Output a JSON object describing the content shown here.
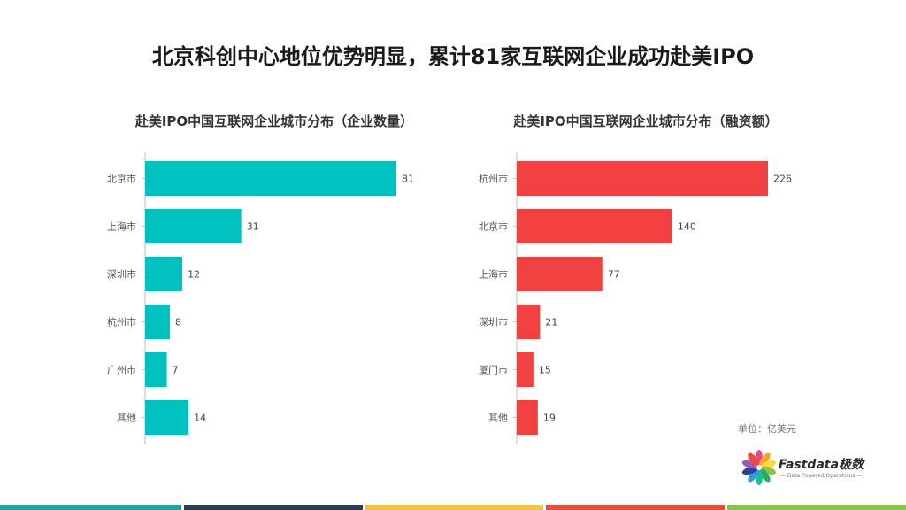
{
  "header": {
    "title": "北京科创中心地位优势明显，累计81家互联网企业成功赴美IPO"
  },
  "chart_data": [
    {
      "type": "bar",
      "orientation": "horizontal",
      "title": "赴美IPO中国互联网企业城市分布（企业数量）",
      "categories": [
        "北京市",
        "上海市",
        "深圳市",
        "杭州市",
        "广州市",
        "其他"
      ],
      "values": [
        81,
        31,
        12,
        8,
        7,
        14
      ],
      "color": "#00C0C0",
      "xlim": [
        0,
        81
      ]
    },
    {
      "type": "bar",
      "orientation": "horizontal",
      "title": "赴美IPO中国互联网企业城市分布（融资额）",
      "categories": [
        "杭州市",
        "北京市",
        "上海市",
        "深圳市",
        "厦门市",
        "其他"
      ],
      "values": [
        226,
        140,
        77,
        21,
        15,
        19
      ],
      "color": "#F04040",
      "xlim": [
        0,
        226
      ]
    }
  ],
  "unit_note": "单位：亿美元",
  "logo": {
    "name": "Fastdata极数",
    "tagline": "— Data Powered Operations —",
    "petal_colors": [
      "#E94B8A",
      "#F5A623",
      "#F8D847",
      "#8BC34A",
      "#27AE60",
      "#1ABC9C",
      "#3498DB",
      "#2C3E9F",
      "#9B59B6",
      "#E74C3C"
    ]
  },
  "footer_stripe_colors": [
    "#1FA39C",
    "#2C3E50",
    "#F5C242",
    "#E74C3C",
    "#8BC34A"
  ]
}
